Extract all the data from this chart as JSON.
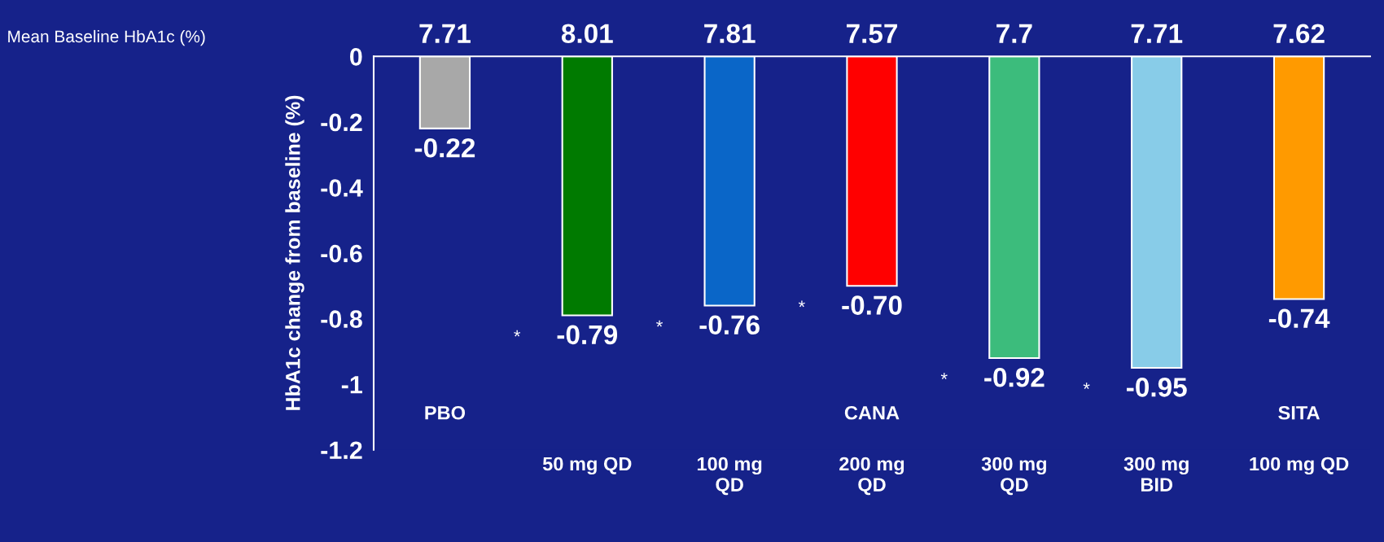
{
  "chart_data": {
    "type": "bar",
    "ylabel": "HbA1c change from baseline (%)",
    "categories": [
      null,
      "50 mg QD",
      "100 mg\nQD",
      "200 mg\nQD",
      "300 mg\nQD",
      "300 mg\nBID",
      "100 mg QD"
    ],
    "values": [
      -0.22,
      -0.79,
      -0.76,
      -0.7,
      -0.92,
      -0.95,
      -0.74
    ],
    "colors": [
      "#a8a8a8",
      "#007a00",
      "#0a66c8",
      "#ff0000",
      "#3cbc7c",
      "#88cce8",
      "#ff9a00"
    ],
    "value_labels": [
      "-0.22",
      "-0.79",
      "-0.76",
      "-0.70",
      "-0.92",
      "-0.95",
      "-0.74"
    ],
    "ylim": [
      -1.2,
      0
    ],
    "yticks": [
      0,
      -0.2,
      -0.4,
      -0.6,
      -0.8,
      -1,
      -1.2
    ],
    "grid": false,
    "legend": false,
    "annotations": [
      "Mean Baseline HbA1c (%)",
      "7.71",
      "8.01",
      "7.81",
      "7.57",
      "7.7",
      "7.71",
      "7.62",
      "PBO",
      "CANA",
      "SITA",
      "*",
      "*",
      "*",
      "*",
      "*"
    ]
  }
}
